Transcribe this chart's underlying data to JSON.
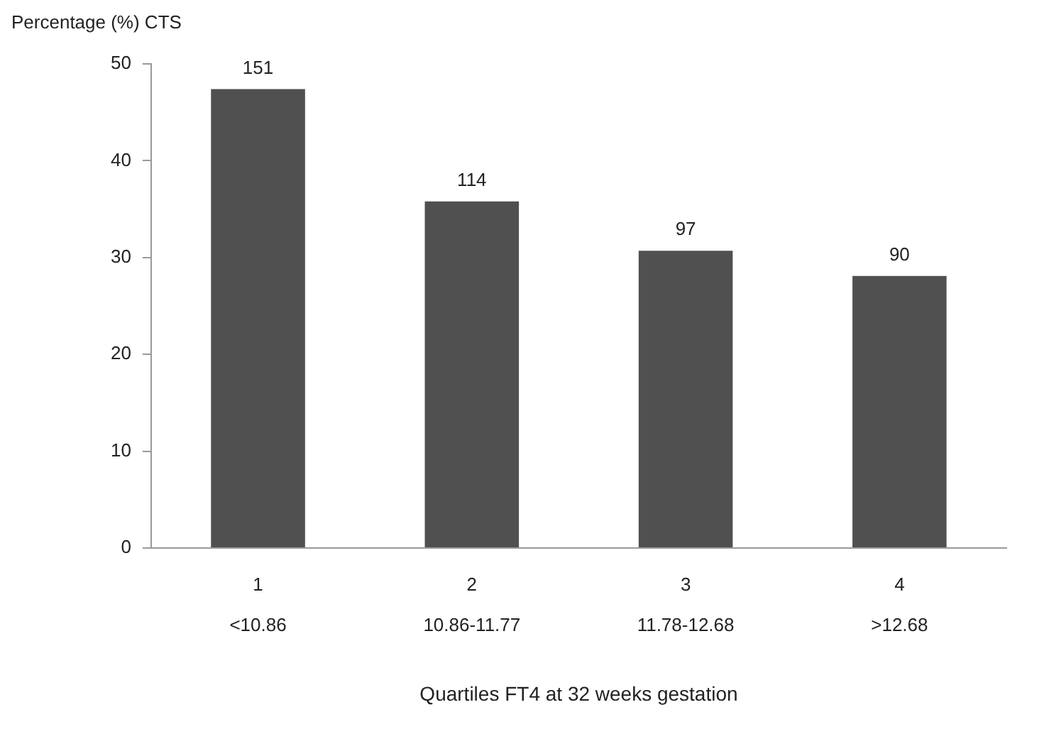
{
  "chart_data": {
    "type": "bar",
    "ylabel": "Percentage (%) CTS",
    "xlabel": "Quartiles FT4 at 32 weeks gestation",
    "categories": [
      "1\n<10.86",
      "2\n10.86-11.77",
      "3\n11.78-12.68",
      "4\n>12.68"
    ],
    "values": [
      47.4,
      35.8,
      30.7,
      28.1
    ],
    "color": "#505050",
    "annotations": [
      {
        "text": "151",
        "x": "1\n<10.86",
        "y": 47.4
      },
      {
        "text": "114",
        "x": "2\n10.86-11.77",
        "y": 35.8
      },
      {
        "text": "97",
        "x": "3\n11.78-12.68",
        "y": 30.7
      },
      {
        "text": "90",
        "x": "4\n>12.68",
        "y": 28.1
      }
    ],
    "ylim": [
      0,
      50
    ],
    "yticks": [
      0,
      10,
      20,
      30,
      40,
      50
    ],
    "grid": false,
    "legend": false
  }
}
